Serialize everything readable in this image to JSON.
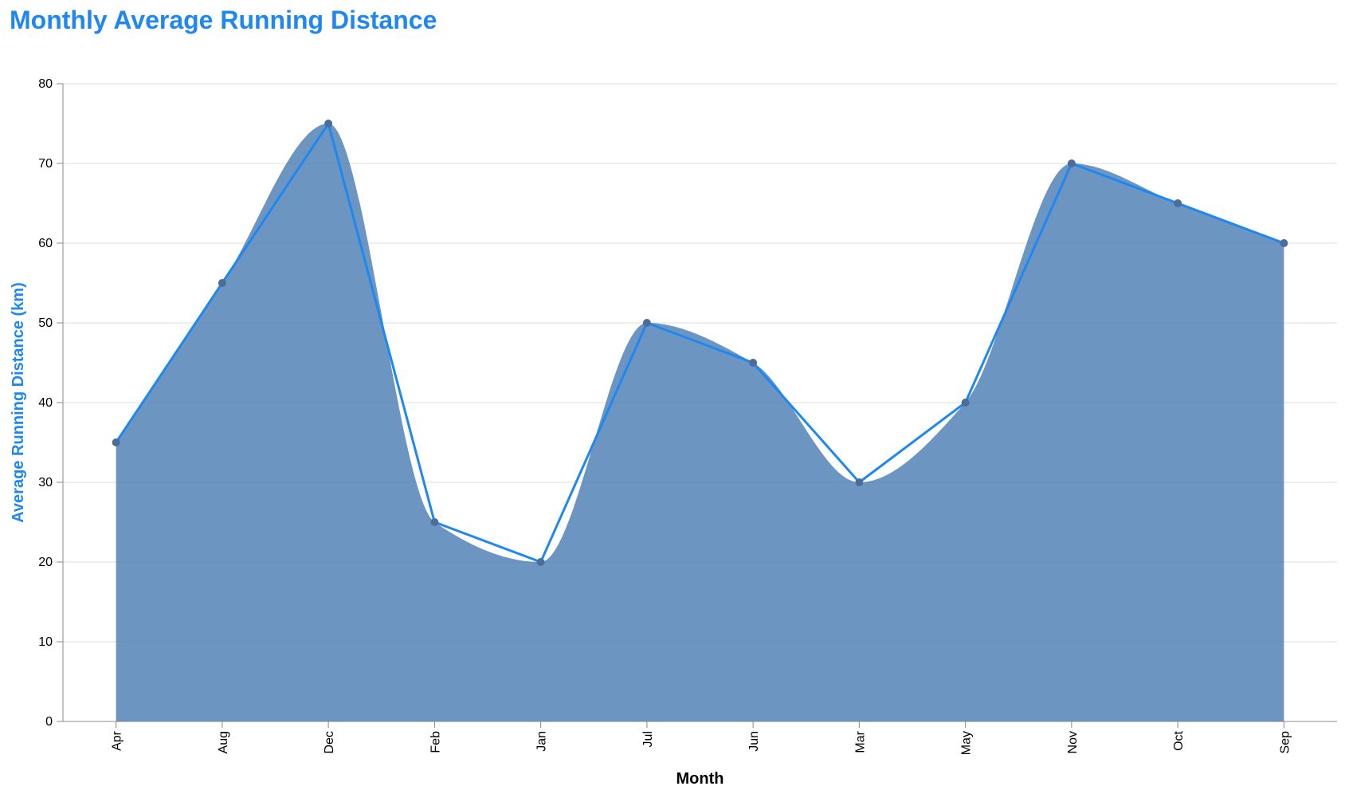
{
  "chart_data": {
    "type": "area",
    "title": "Monthly Average Running Distance",
    "xlabel": "Month",
    "ylabel": "Average Running Distance (km)",
    "categories": [
      "Apr",
      "Aug",
      "Dec",
      "Feb",
      "Jan",
      "Jul",
      "Jun",
      "Mar",
      "May",
      "Nov",
      "Oct",
      "Sep"
    ],
    "series": [
      {
        "values": [
          35,
          55,
          75,
          25,
          20,
          50,
          45,
          30,
          40,
          70,
          65,
          60
        ]
      }
    ],
    "ylim": [
      0,
      80
    ],
    "yticks": [
      0,
      10,
      20,
      30,
      40,
      50,
      60,
      70,
      80
    ],
    "grid": true,
    "legend": "none",
    "colors": {
      "title": "#1e88f0",
      "ylabel": "#1e88f0",
      "xlabel": "#000000",
      "area": "#4c7fb3",
      "line": "#1e88f0",
      "points": "#4c6d9a",
      "grid": "#dddddd",
      "axis": "#888888"
    }
  }
}
